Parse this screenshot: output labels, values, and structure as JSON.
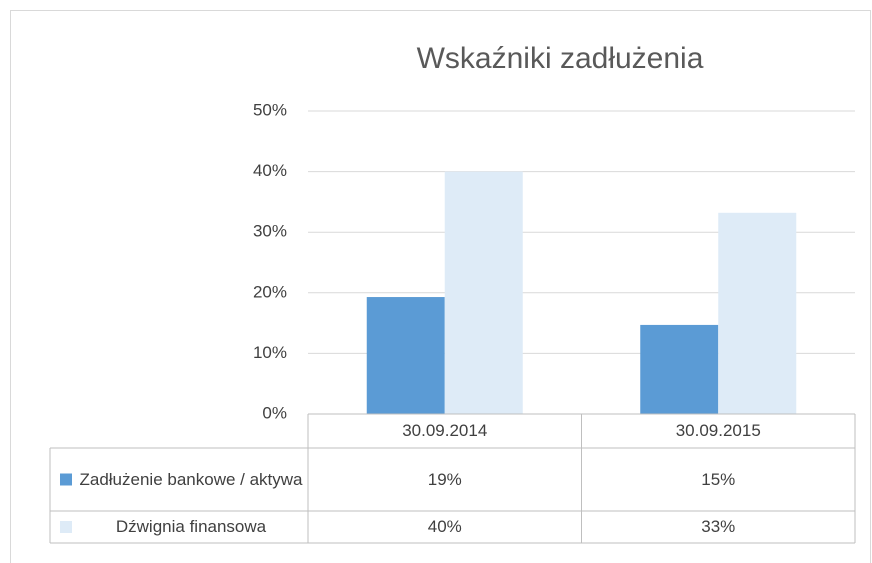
{
  "chart_data": {
    "type": "bar",
    "title": "Wskaźniki zadłużenia",
    "categories": [
      "30.09.2014",
      "30.09.2015"
    ],
    "series": [
      {
        "name": "Zadłużenie bankowe / aktywa",
        "color": "#5b9bd5",
        "values": [
          19.3,
          14.7
        ],
        "value_labels": [
          "19%",
          "15%"
        ]
      },
      {
        "name": "Dźwignia finansowa",
        "color": "#deebf7",
        "values": [
          40,
          33.2
        ],
        "value_labels": [
          "40%",
          "33%"
        ]
      }
    ],
    "ylim": [
      0,
      50
    ],
    "yticks": [
      {
        "value": 0,
        "label": "0%"
      },
      {
        "value": 10,
        "label": "10%"
      },
      {
        "value": 20,
        "label": "20%"
      },
      {
        "value": 30,
        "label": "30%"
      },
      {
        "value": 40,
        "label": "40%"
      },
      {
        "value": 50,
        "label": "50%"
      }
    ],
    "grid": true
  }
}
